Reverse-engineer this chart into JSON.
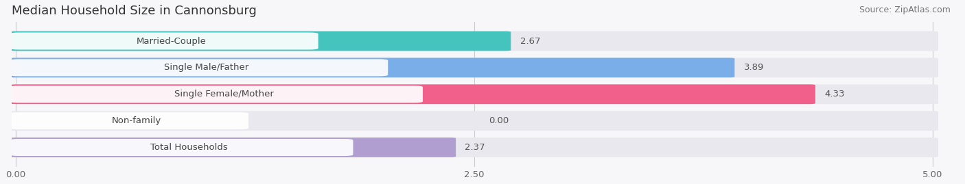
{
  "title": "Median Household Size in Cannonsburg",
  "source": "Source: ZipAtlas.com",
  "categories": [
    "Married-Couple",
    "Single Male/Father",
    "Single Female/Mother",
    "Non-family",
    "Total Households"
  ],
  "values": [
    2.67,
    3.89,
    4.33,
    0.0,
    2.37
  ],
  "bar_colors": [
    "#45c4be",
    "#7aaee8",
    "#f0608a",
    "#f5c895",
    "#b09ed0"
  ],
  "bar_bg_color": "#e8e8ee",
  "xlim_max": 5.0,
  "xticks": [
    0.0,
    2.5,
    5.0
  ],
  "xtick_labels": [
    "0.00",
    "2.50",
    "5.00"
  ],
  "background_color": "#f7f7fa",
  "title_fontsize": 13,
  "source_fontsize": 9,
  "label_fontsize": 9.5,
  "value_fontsize": 9.5
}
